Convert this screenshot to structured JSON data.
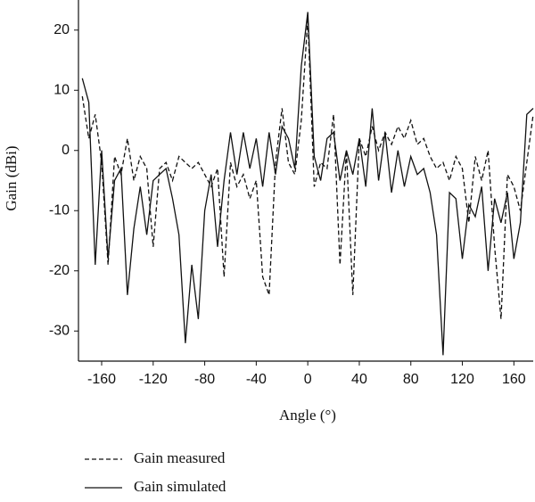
{
  "chart_data": {
    "type": "line",
    "x_label": "Angle (°)",
    "y_label": "Gain (dBi)",
    "x": [
      -175,
      -170,
      -165,
      -160,
      -155,
      -150,
      -145,
      -140,
      -135,
      -130,
      -125,
      -120,
      -115,
      -110,
      -105,
      -100,
      -95,
      -90,
      -85,
      -80,
      -75,
      -70,
      -65,
      -60,
      -55,
      -50,
      -45,
      -40,
      -35,
      -30,
      -25,
      -20,
      -15,
      -10,
      -5,
      0,
      5,
      10,
      15,
      20,
      25,
      30,
      35,
      40,
      45,
      50,
      55,
      60,
      65,
      70,
      75,
      80,
      85,
      90,
      95,
      100,
      105,
      110,
      115,
      120,
      125,
      130,
      135,
      140,
      145,
      150,
      155,
      160,
      165,
      170,
      175
    ],
    "series": [
      {
        "name": "Gain measured",
        "color": "#111111",
        "line_style": "dashed",
        "values": [
          9,
          2,
          6,
          -2,
          -19,
          -1,
          -4,
          2,
          -5,
          -1,
          -3,
          -16,
          -3,
          -2,
          -5,
          -1,
          -2,
          -3,
          -2,
          -4,
          -6,
          -3,
          -21,
          -2,
          -6,
          -4,
          -8,
          -5,
          -21,
          -24,
          -2,
          7,
          -2,
          -4,
          5,
          22,
          -6,
          -2,
          -3,
          6,
          -19,
          0,
          -24,
          2,
          -1,
          4,
          0,
          3,
          1,
          4,
          2,
          5,
          1,
          2,
          -1,
          -3,
          -2,
          -5,
          -1,
          -3,
          -12,
          -1,
          -5,
          0,
          -16,
          -28,
          -4,
          -6,
          -10,
          -2,
          6
        ]
      },
      {
        "name": "Gain simulated",
        "color": "#111111",
        "line_style": "solid",
        "values": [
          12,
          8,
          -19,
          0,
          -18,
          -5,
          -3,
          -24,
          -13,
          -6,
          -14,
          -5,
          -4,
          -3,
          -8,
          -14,
          -32,
          -19,
          -28,
          -10,
          -4,
          -16,
          -5,
          3,
          -4,
          3,
          -3,
          2,
          -6,
          3,
          -4,
          4,
          2,
          -3,
          14,
          23,
          -1,
          -5,
          2,
          3,
          -5,
          0,
          -4,
          2,
          -6,
          7,
          -5,
          3,
          -7,
          0,
          -6,
          -1,
          -4,
          -3,
          -7,
          -14,
          -34,
          -7,
          -8,
          -18,
          -9,
          -11,
          -6,
          -20,
          -8,
          -12,
          -7,
          -18,
          -12,
          6,
          7
        ]
      }
    ],
    "xlim": [
      -178,
      175
    ],
    "ylim": [
      -35,
      25
    ],
    "xticks": [
      -160,
      -120,
      -80,
      -40,
      0,
      40,
      80,
      120,
      160
    ],
    "yticks": [
      20,
      10,
      0,
      -10,
      -20,
      -30
    ],
    "grid": false,
    "legend": "below"
  }
}
